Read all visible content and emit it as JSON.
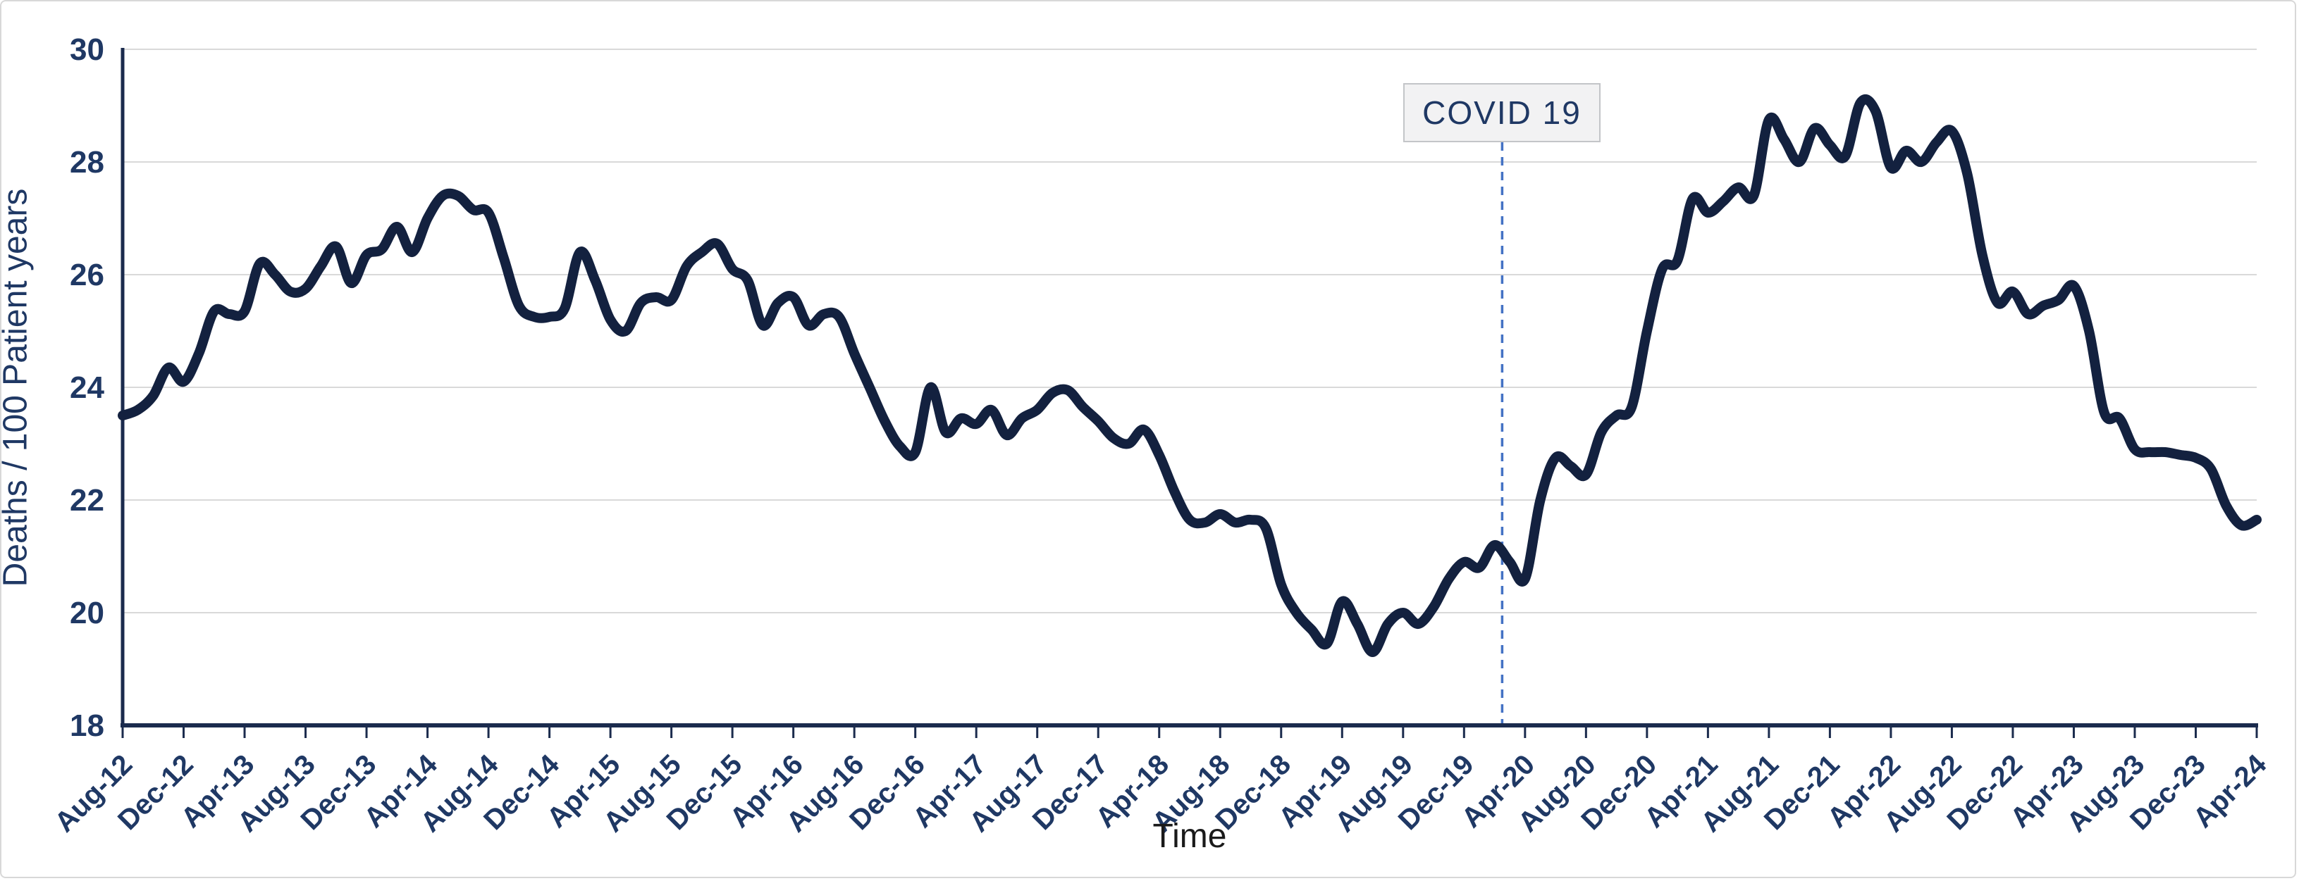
{
  "chart_data": {
    "type": "line",
    "title": "",
    "xlabel": "Time",
    "ylabel": "Deaths / 100 Patient years",
    "ylim": [
      18,
      30
    ],
    "y_ticks": [
      18,
      20,
      22,
      24,
      26,
      28,
      30
    ],
    "grid": "horizontal gridlines every 2 units",
    "legend": "none",
    "series_name": "Deaths per 100 patient years",
    "x_start": "Aug-12",
    "x_end": "Apr-24",
    "x_frequency": "monthly",
    "x_tick_every_n_months": 4,
    "x_tick_labels": [
      "Aug-12",
      "Dec-12",
      "Apr-13",
      "Aug-13",
      "Dec-13",
      "Apr-14",
      "Aug-14",
      "Dec-14",
      "Apr-15",
      "Aug-15",
      "Dec-15",
      "Apr-16",
      "Aug-16",
      "Dec-16",
      "Apr-17",
      "Aug-17",
      "Dec-17",
      "Apr-18",
      "Aug-18",
      "Dec-18",
      "Apr-19",
      "Aug-19",
      "Dec-19",
      "Apr-20",
      "Aug-20",
      "Dec-20",
      "Apr-21",
      "Aug-21",
      "Dec-21",
      "Apr-22",
      "Aug-22",
      "Dec-22",
      "Apr-23",
      "Aug-23",
      "Dec-23",
      "Apr-24"
    ],
    "values": [
      23.5,
      23.6,
      23.85,
      24.35,
      24.1,
      24.6,
      25.35,
      25.3,
      25.35,
      26.2,
      26.0,
      25.7,
      25.75,
      26.15,
      26.5,
      25.85,
      26.35,
      26.45,
      26.85,
      26.4,
      27.0,
      27.4,
      27.4,
      27.15,
      27.1,
      26.3,
      25.45,
      25.25,
      25.25,
      25.4,
      26.4,
      25.9,
      25.2,
      25.0,
      25.5,
      25.6,
      25.55,
      26.15,
      26.4,
      26.55,
      26.1,
      25.9,
      25.1,
      25.5,
      25.6,
      25.1,
      25.3,
      25.25,
      24.6,
      24.0,
      23.4,
      22.95,
      22.85,
      24.0,
      23.2,
      23.45,
      23.35,
      23.6,
      23.15,
      23.45,
      23.6,
      23.9,
      23.95,
      23.65,
      23.4,
      23.1,
      23.0,
      23.25,
      22.8,
      22.15,
      21.65,
      21.6,
      21.75,
      21.6,
      21.65,
      21.5,
      20.5,
      20.0,
      19.7,
      19.45,
      20.2,
      19.8,
      19.3,
      19.8,
      20.0,
      19.8,
      20.1,
      20.6,
      20.9,
      20.8,
      21.2,
      20.9,
      20.6,
      22.0,
      22.75,
      22.6,
      22.45,
      23.2,
      23.5,
      23.65,
      25.0,
      26.1,
      26.25,
      27.35,
      27.1,
      27.3,
      27.55,
      27.4,
      28.75,
      28.4,
      28.0,
      28.6,
      28.3,
      28.1,
      29.05,
      28.9,
      27.9,
      28.2,
      28.0,
      28.35,
      28.55,
      27.8,
      26.35,
      25.5,
      25.7,
      25.3,
      25.45,
      25.55,
      25.8,
      25.0,
      23.55,
      23.45,
      22.9,
      22.85,
      22.85,
      22.8,
      22.75,
      22.55,
      21.9,
      21.55,
      21.65
    ],
    "annotation": {
      "label": "COVID 19",
      "position_month_index": 90.5,
      "position_label": "Mar-20"
    },
    "colors": {
      "line": "#13213f",
      "axis": "#1b2b4d",
      "tick_label": "#1f3864",
      "grid": "#d9d9d9",
      "covid_line": "#4472c4",
      "covid_box_bg": "#f2f2f3",
      "covid_box_border": "#c3c5c8",
      "xlabel_text": "#1a1a1a",
      "ylabel_text": "#1f3864"
    }
  }
}
